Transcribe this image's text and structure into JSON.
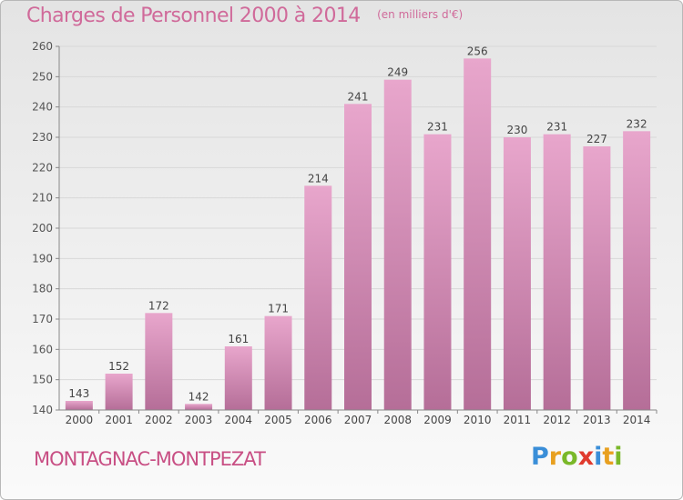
{
  "title": "Charges de Personnel 2000 à 2014",
  "subtitle": "(en milliers d'€)",
  "location": "MONTAGNAC-MONTPEZAT",
  "logo": {
    "text": "Proxiti",
    "letters": [
      {
        "char": "P",
        "color": "#3a8ed8"
      },
      {
        "char": "r",
        "color": "#e8a020"
      },
      {
        "char": "o",
        "color": "#7ab829"
      },
      {
        "char": "x",
        "color": "#e03a2e"
      },
      {
        "char": "i",
        "color": "#3a8ed8"
      },
      {
        "char": "t",
        "color": "#e8a020"
      },
      {
        "char": "i",
        "color": "#7ab829"
      }
    ]
  },
  "colors": {
    "bar_top": "#e8a6cc",
    "bar_bottom": "#b56e98",
    "title": "#d06a9a",
    "axis": "#888888",
    "grid": "#d8d8d8"
  },
  "chart_data": {
    "type": "bar",
    "categories": [
      "2000",
      "2001",
      "2002",
      "2003",
      "2004",
      "2005",
      "2006",
      "2007",
      "2008",
      "2009",
      "2010",
      "2011",
      "2012",
      "2013",
      "2014"
    ],
    "values": [
      143,
      152,
      172,
      142,
      161,
      171,
      214,
      241,
      249,
      231,
      256,
      230,
      231,
      227,
      232
    ],
    "ylim": [
      140,
      260
    ],
    "yticks": [
      140,
      150,
      160,
      170,
      180,
      190,
      200,
      210,
      220,
      230,
      240,
      250,
      260
    ],
    "grid": true,
    "legend": "none"
  }
}
